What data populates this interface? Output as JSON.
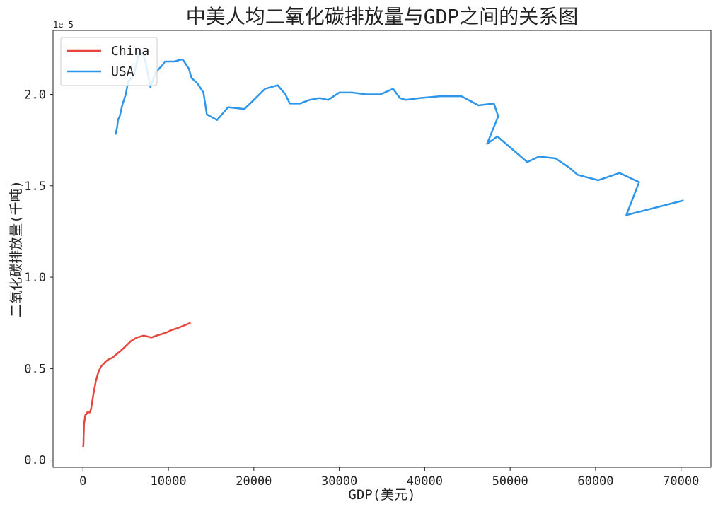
{
  "chart_data": {
    "type": "line",
    "title": "中美人均二氧化碳排放量与GDP之间的关系图",
    "xlabel": "GDP(美元)",
    "ylabel": "二氧化碳排放量(千吨)",
    "y_offset_label": "1e-5",
    "xlim": [
      -3500,
      73500
    ],
    "ylim": [
      -0.04,
      2.35
    ],
    "x_ticks": [
      0,
      10000,
      20000,
      30000,
      40000,
      50000,
      60000,
      70000
    ],
    "x_tick_labels": [
      "0",
      "10000",
      "20000",
      "30000",
      "40000",
      "50000",
      "60000",
      "70000"
    ],
    "y_ticks": [
      0.0,
      0.5,
      1.0,
      1.5,
      2.0
    ],
    "y_tick_labels": [
      "0.0",
      "0.5",
      "1.0",
      "1.5",
      "2.0"
    ],
    "grid": false,
    "legend_position": "top-left",
    "series": [
      {
        "name": "China",
        "color": "#e8453c",
        "points": [
          [
            30,
            0.07
          ],
          [
            60,
            0.09
          ],
          [
            80,
            0.13
          ],
          [
            100,
            0.16
          ],
          [
            120,
            0.19
          ],
          [
            160,
            0.21
          ],
          [
            200,
            0.22
          ],
          [
            250,
            0.24
          ],
          [
            320,
            0.25
          ],
          [
            400,
            0.25
          ],
          [
            500,
            0.26
          ],
          [
            650,
            0.26
          ],
          [
            800,
            0.26
          ],
          [
            950,
            0.28
          ],
          [
            1050,
            0.31
          ],
          [
            1150,
            0.34
          ],
          [
            1300,
            0.38
          ],
          [
            1500,
            0.43
          ],
          [
            1800,
            0.48
          ],
          [
            2100,
            0.51
          ],
          [
            2500,
            0.53
          ],
          [
            2700,
            0.54
          ],
          [
            3000,
            0.55
          ],
          [
            3500,
            0.56
          ],
          [
            3700,
            0.57
          ],
          [
            4500,
            0.6
          ],
          [
            5600,
            0.65
          ],
          [
            6300,
            0.67
          ],
          [
            7100,
            0.68
          ],
          [
            7600,
            0.675
          ],
          [
            8000,
            0.67
          ],
          [
            8600,
            0.68
          ],
          [
            9300,
            0.69
          ],
          [
            9900,
            0.7
          ],
          [
            10300,
            0.71
          ],
          [
            11000,
            0.72
          ],
          [
            11800,
            0.735
          ],
          [
            12600,
            0.75
          ]
        ]
      },
      {
        "name": "USA",
        "color": "#2d96ea",
        "points": [
          [
            3800,
            1.78
          ],
          [
            4000,
            1.82
          ],
          [
            4100,
            1.86
          ],
          [
            4300,
            1.88
          ],
          [
            4600,
            1.94
          ],
          [
            5000,
            2.0
          ],
          [
            5300,
            2.07
          ],
          [
            5700,
            2.09
          ],
          [
            6000,
            2.11
          ],
          [
            6300,
            2.18
          ],
          [
            6500,
            2.21
          ],
          [
            7000,
            2.23
          ],
          [
            7400,
            2.16
          ],
          [
            7700,
            2.09
          ],
          [
            7900,
            2.04
          ],
          [
            8200,
            2.08
          ],
          [
            8500,
            2.12
          ],
          [
            9300,
            2.16
          ],
          [
            9600,
            2.18
          ],
          [
            10400,
            2.18
          ],
          [
            10700,
            2.18
          ],
          [
            11400,
            2.19
          ],
          [
            11700,
            2.19
          ],
          [
            12400,
            2.14
          ],
          [
            12700,
            2.09
          ],
          [
            13400,
            2.06
          ],
          [
            14100,
            2.01
          ],
          [
            14500,
            1.89
          ],
          [
            15700,
            1.86
          ],
          [
            17000,
            1.93
          ],
          [
            18900,
            1.92
          ],
          [
            20000,
            1.97
          ],
          [
            21300,
            2.03
          ],
          [
            22800,
            2.05
          ],
          [
            23700,
            2.0
          ],
          [
            24200,
            1.95
          ],
          [
            25400,
            1.95
          ],
          [
            26500,
            1.97
          ],
          [
            27700,
            1.98
          ],
          [
            28700,
            1.97
          ],
          [
            30000,
            2.01
          ],
          [
            31500,
            2.01
          ],
          [
            33100,
            2.0
          ],
          [
            34800,
            2.0
          ],
          [
            36300,
            2.03
          ],
          [
            37100,
            1.98
          ],
          [
            37800,
            1.97
          ],
          [
            39400,
            1.98
          ],
          [
            41800,
            1.99
          ],
          [
            44300,
            1.99
          ],
          [
            46300,
            1.94
          ],
          [
            48100,
            1.95
          ],
          [
            48600,
            1.88
          ],
          [
            47300,
            1.73
          ],
          [
            48500,
            1.77
          ],
          [
            50000,
            1.71
          ],
          [
            52000,
            1.63
          ],
          [
            53400,
            1.66
          ],
          [
            55300,
            1.65
          ],
          [
            56900,
            1.6
          ],
          [
            57900,
            1.56
          ],
          [
            60300,
            1.53
          ],
          [
            62800,
            1.57
          ],
          [
            65100,
            1.52
          ],
          [
            63600,
            1.34
          ],
          [
            70300,
            1.42
          ]
        ]
      }
    ]
  }
}
